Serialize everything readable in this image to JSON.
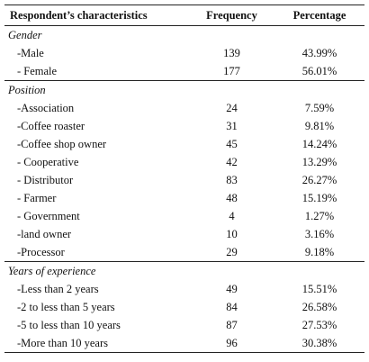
{
  "header": {
    "characteristics": "Respondent’s characteristics",
    "frequency": "Frequency",
    "percentage": "Percentage"
  },
  "groups": [
    {
      "title": "Gender",
      "rows": [
        {
          "label": "-Male",
          "freq": "139",
          "pct": "43.99%"
        },
        {
          "label": "- Female",
          "freq": "177",
          "pct": "56.01%"
        }
      ]
    },
    {
      "title": "Position",
      "rows": [
        {
          "label": "-Association",
          "freq": "24",
          "pct": "7.59%"
        },
        {
          "label": "-Coffee roaster",
          "freq": "31",
          "pct": "9.81%"
        },
        {
          "label": "-Coffee shop owner",
          "freq": "45",
          "pct": "14.24%"
        },
        {
          "label": "- Cooperative",
          "freq": "42",
          "pct": "13.29%"
        },
        {
          "label": "- Distributor",
          "freq": "83",
          "pct": "26.27%"
        },
        {
          "label": "- Farmer",
          "freq": "48",
          "pct": "15.19%"
        },
        {
          "label": "- Government",
          "freq": "4",
          "pct": "1.27%"
        },
        {
          "label": "-land owner",
          "freq": "10",
          "pct": "3.16%"
        },
        {
          "label": "-Processor",
          "freq": "29",
          "pct": "9.18%"
        }
      ]
    },
    {
      "title": "Years of experience",
      "rows": [
        {
          "label": "-Less than 2 years",
          "freq": "49",
          "pct": "15.51%"
        },
        {
          "label": "-2 to less than 5 years",
          "freq": "84",
          "pct": "26.58%"
        },
        {
          "label": "-5 to less than 10 years",
          "freq": "87",
          "pct": "27.53%"
        },
        {
          "label": "-More than 10 years",
          "freq": "96",
          "pct": "30.38%"
        }
      ]
    }
  ]
}
